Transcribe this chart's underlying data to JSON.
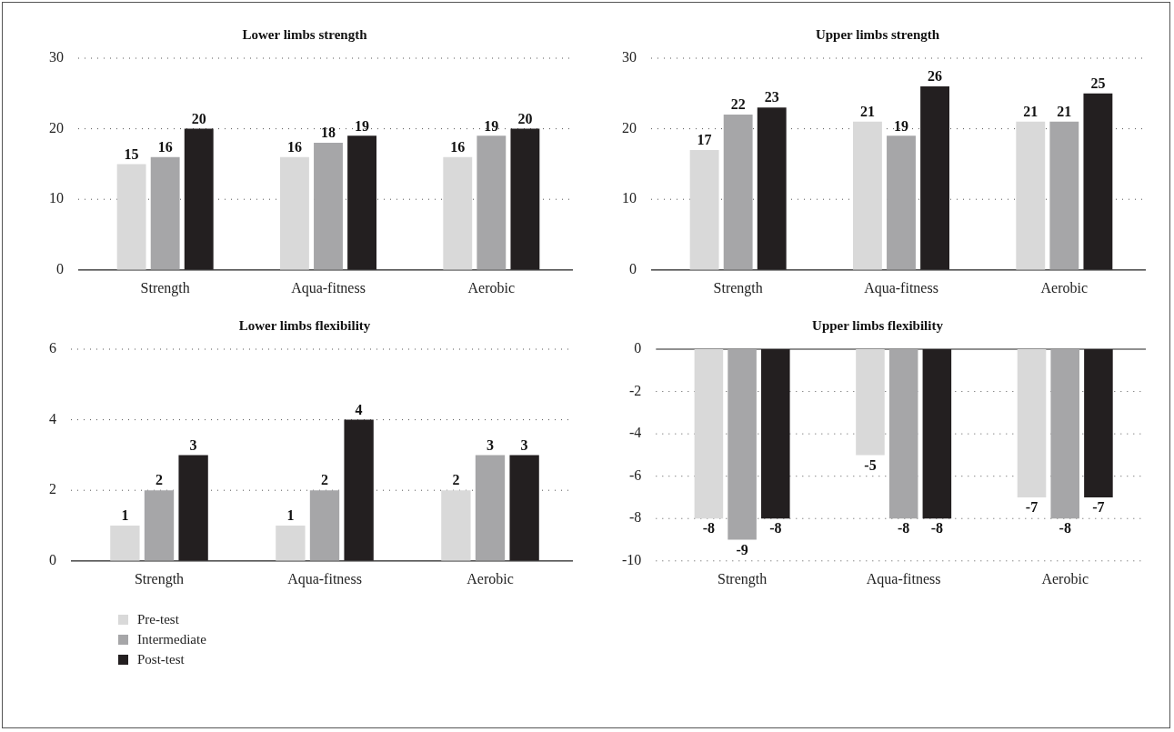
{
  "chart_data": [
    {
      "type": "bar",
      "title": "Lower limbs strength",
      "categories": [
        "Strength",
        "Aqua-fitness",
        "Aerobic"
      ],
      "series": [
        {
          "color": "#d9d9d9",
          "values": [
            15,
            16,
            16
          ]
        },
        {
          "color": "#a6a6a8",
          "values": [
            16,
            18,
            19
          ]
        },
        {
          "color": "#231f20",
          "values": [
            20,
            19,
            20
          ]
        }
      ],
      "ylim": [
        0,
        30
      ],
      "yticks": [
        0,
        10,
        20,
        30
      ],
      "grid": "y",
      "data_labels": true
    },
    {
      "type": "bar",
      "title": "Upper limbs strength",
      "categories": [
        "Strength",
        "Aqua-fitness",
        "Aerobic"
      ],
      "series": [
        {
          "color": "#d9d9d9",
          "values": [
            17,
            21,
            21
          ]
        },
        {
          "color": "#a6a6a8",
          "values": [
            22,
            19,
            21
          ]
        },
        {
          "color": "#231f20",
          "values": [
            23,
            26,
            25
          ]
        }
      ],
      "ylim": [
        0,
        30
      ],
      "yticks": [
        0,
        10,
        20,
        30
      ],
      "grid": "y",
      "data_labels": true
    },
    {
      "type": "bar",
      "title": "Lower limbs flexibility",
      "categories": [
        "Strength",
        "Aqua-fitness",
        "Aerobic"
      ],
      "series": [
        {
          "name": "Pre-test",
          "color": "#d9d9d9",
          "values": [
            1,
            1,
            2
          ]
        },
        {
          "name": "Intermediate",
          "color": "#a6a6a8",
          "values": [
            2,
            2,
            3
          ]
        },
        {
          "name": "Post-test",
          "color": "#231f20",
          "values": [
            3,
            4,
            3
          ]
        }
      ],
      "ylim": [
        0,
        6
      ],
      "yticks": [
        0,
        2,
        4,
        6
      ],
      "grid": "y",
      "data_labels": true,
      "legend": "bottom left"
    },
    {
      "type": "bar",
      "title": "Upper limbs flexibility",
      "categories": [
        "Strength",
        "Aqua-fitness",
        "Aerobic"
      ],
      "series": [
        {
          "color": "#d9d9d9",
          "values": [
            -8,
            -5,
            -7
          ]
        },
        {
          "color": "#a6a6a8",
          "values": [
            -9,
            -8,
            -8
          ]
        },
        {
          "color": "#231f20",
          "values": [
            -8,
            -8,
            -7
          ]
        }
      ],
      "ylim": [
        -10,
        0
      ],
      "yticks": [
        -10,
        -8,
        -6,
        -4,
        -2,
        0
      ],
      "grid": "y",
      "data_labels": true
    }
  ]
}
